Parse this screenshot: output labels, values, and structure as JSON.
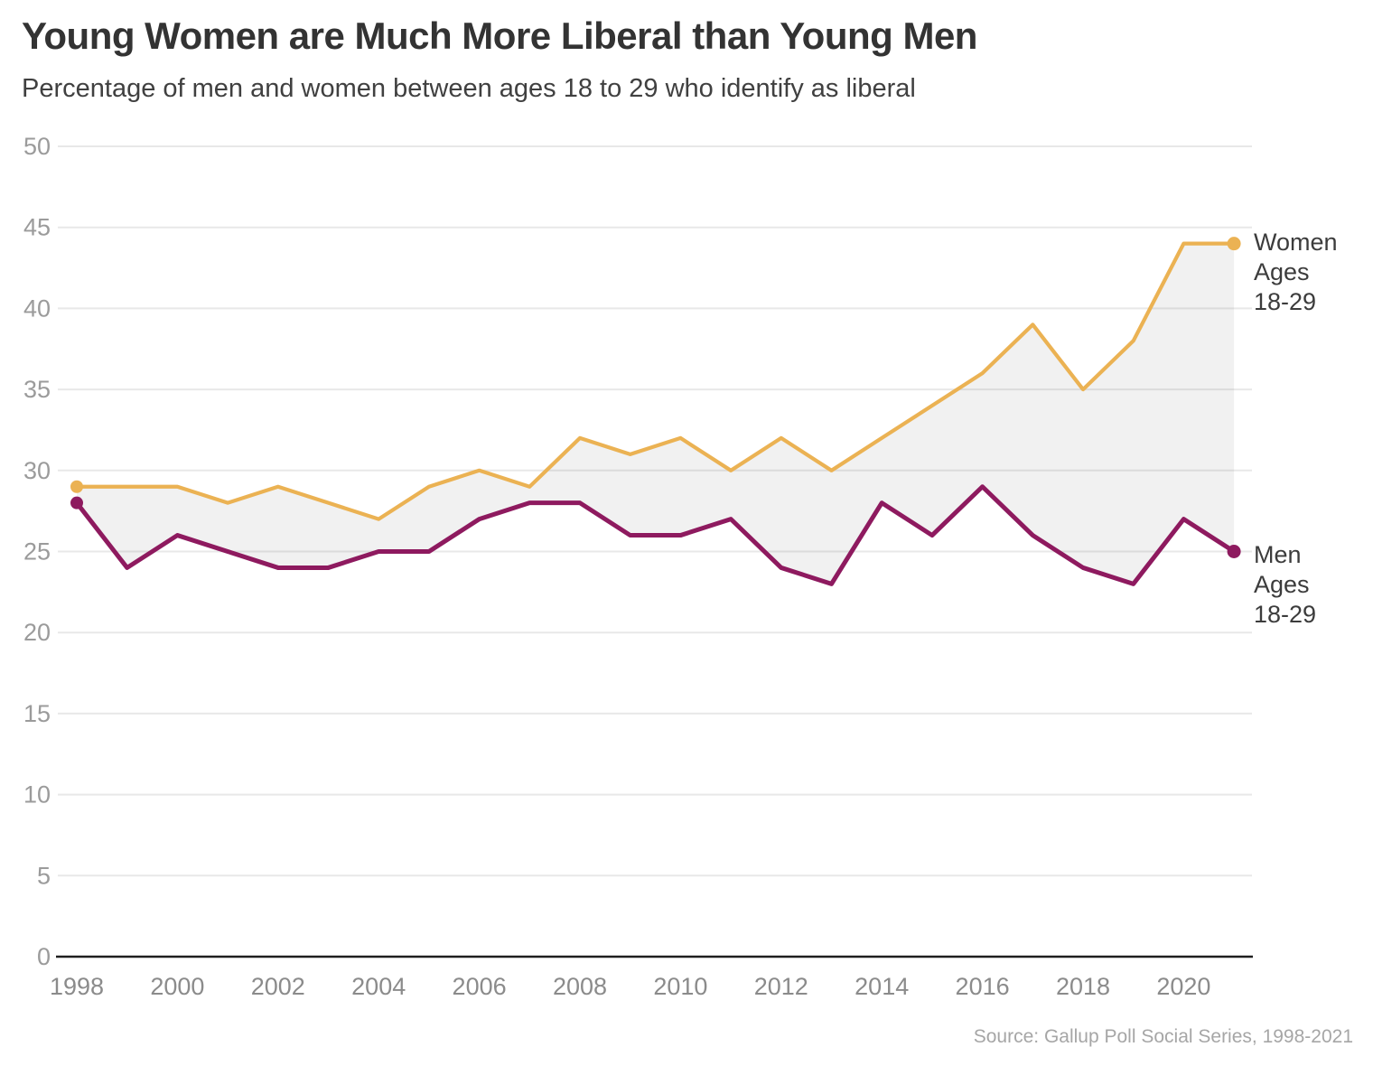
{
  "header": {
    "title": "Young Women are Much More Liberal than Young Men",
    "subtitle": "Percentage of men and women between ages 18 to 29 who identify as liberal"
  },
  "source": "Source: Gallup Poll Social Series, 1998-2021",
  "series_labels": {
    "women": [
      "Women",
      "Ages",
      "18-29"
    ],
    "men": [
      "Men",
      "Ages",
      "18-29"
    ]
  },
  "colors": {
    "women_line": "#EBB253",
    "men_line": "#8E1A5F",
    "gap_area": "rgba(0,0,0,0.053)",
    "gridline": "#E8E8E8",
    "axis": "#1F1F1F",
    "y_tick_text": "#9B9B9B",
    "x_tick_text": "#8B8B8B"
  },
  "chart_data": {
    "type": "line",
    "title": "Young Women are Much More Liberal than Young Men",
    "subtitle": "Percentage of men and women between ages 18 to 29 who identify as liberal",
    "xlabel": "",
    "ylabel": "",
    "x": [
      1998,
      1999,
      2000,
      2001,
      2002,
      2003,
      2004,
      2005,
      2006,
      2007,
      2008,
      2009,
      2010,
      2011,
      2012,
      2013,
      2014,
      2015,
      2016,
      2017,
      2018,
      2019,
      2020,
      2021
    ],
    "series": [
      {
        "name": "Women Ages 18-29",
        "values": [
          29,
          29,
          29,
          28,
          29,
          28,
          27,
          29,
          30,
          29,
          32,
          31,
          32,
          30,
          32,
          30,
          32,
          34,
          36,
          39,
          35,
          38,
          44,
          44
        ]
      },
      {
        "name": "Men Ages 18-29",
        "values": [
          28,
          24,
          26,
          25,
          24,
          24,
          25,
          25,
          27,
          28,
          28,
          26,
          26,
          27,
          24,
          23,
          28,
          26,
          29,
          26,
          24,
          23,
          27,
          25
        ]
      }
    ],
    "ylim": [
      0,
      50
    ],
    "y_ticks": [
      0,
      5,
      10,
      15,
      20,
      25,
      30,
      35,
      40,
      45,
      50
    ],
    "x_tick_labels": [
      1998,
      2000,
      2002,
      2004,
      2006,
      2008,
      2010,
      2012,
      2014,
      2016,
      2018,
      2020
    ],
    "grid": true,
    "legend_position": "end-of-line-labels-right",
    "area_between_series": true,
    "endpoint_dots": true
  }
}
